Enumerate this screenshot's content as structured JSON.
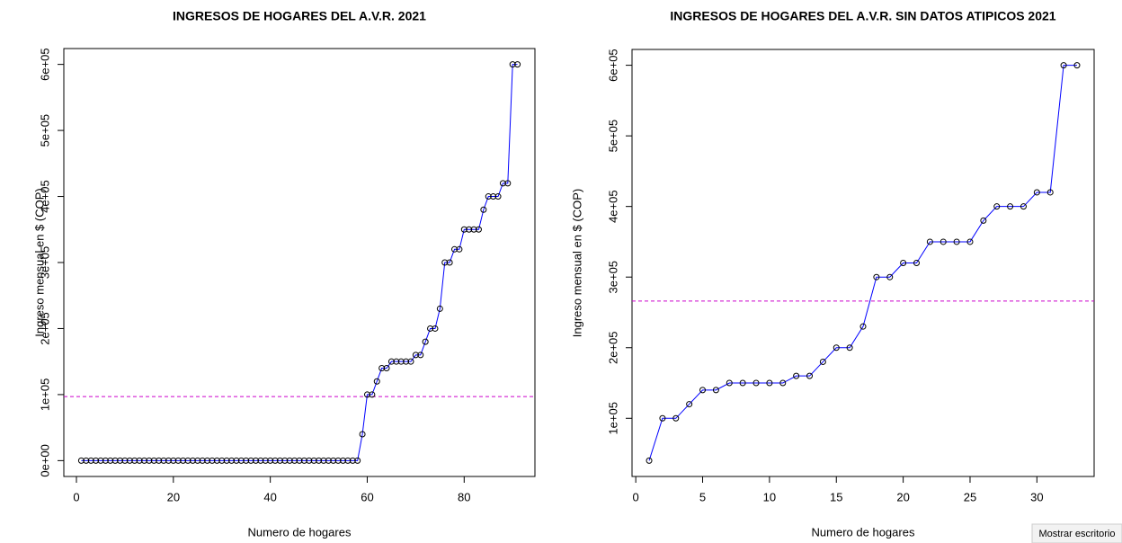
{
  "chart_data": [
    {
      "type": "line",
      "title": "INGRESOS DE HOGARES DEL A.V.R. 2021",
      "x_label": "Numero de hogares",
      "y_label": "Ingreso mensual en $ (COP)",
      "x": [
        1,
        2,
        3,
        4,
        5,
        6,
        7,
        8,
        9,
        10,
        11,
        12,
        13,
        14,
        15,
        16,
        17,
        18,
        19,
        20,
        21,
        22,
        23,
        24,
        25,
        26,
        27,
        28,
        29,
        30,
        31,
        32,
        33,
        34,
        35,
        36,
        37,
        38,
        39,
        40,
        41,
        42,
        43,
        44,
        45,
        46,
        47,
        48,
        49,
        50,
        51,
        52,
        53,
        54,
        55,
        56,
        57,
        58,
        59,
        60,
        61,
        62,
        63,
        64,
        65,
        66,
        67,
        68,
        69,
        70,
        71,
        72,
        73,
        74,
        75,
        76,
        77,
        78,
        79,
        80,
        81,
        82,
        83,
        84,
        85,
        86,
        87,
        88,
        89,
        90,
        91
      ],
      "series": [
        {
          "color": "#0000ff",
          "point_color": "#000000",
          "values": [
            0,
            0,
            0,
            0,
            0,
            0,
            0,
            0,
            0,
            0,
            0,
            0,
            0,
            0,
            0,
            0,
            0,
            0,
            0,
            0,
            0,
            0,
            0,
            0,
            0,
            0,
            0,
            0,
            0,
            0,
            0,
            0,
            0,
            0,
            0,
            0,
            0,
            0,
            0,
            0,
            0,
            0,
            0,
            0,
            0,
            0,
            0,
            0,
            0,
            0,
            0,
            0,
            0,
            0,
            0,
            0,
            0,
            0,
            40000,
            100000,
            100000,
            120000,
            140000,
            140000,
            150000,
            150000,
            150000,
            150000,
            150000,
            160000,
            160000,
            180000,
            200000,
            200000,
            230000,
            300000,
            300000,
            320000,
            320000,
            350000,
            350000,
            350000,
            350000,
            380000,
            400000,
            400000,
            400000,
            420000,
            420000,
            600000,
            600000
          ]
        }
      ],
      "hline": {
        "value": 97000,
        "color": "#cc00cc"
      },
      "xlim": [
        -2.6,
        94.6
      ],
      "xticks": [
        0,
        20,
        40,
        60,
        80
      ],
      "ylim": [
        -24000,
        624000
      ],
      "yticks": [
        {
          "value": 0,
          "label": "0e+00"
        },
        {
          "value": 100000,
          "label": "1e+05"
        },
        {
          "value": 200000,
          "label": "2e+05"
        },
        {
          "value": 300000,
          "label": "3e+05"
        },
        {
          "value": 400000,
          "label": "4e+05"
        },
        {
          "value": 500000,
          "label": "5e+05"
        },
        {
          "value": 600000,
          "label": "6e+05"
        }
      ]
    },
    {
      "type": "line",
      "title": "INGRESOS DE HOGARES DEL A.V.R. SIN DATOS ATIPICOS 2021",
      "x_label": "Numero de hogares",
      "y_label": "Ingreso mensual en $ (COP)",
      "x": [
        1,
        2,
        3,
        4,
        5,
        6,
        7,
        8,
        9,
        10,
        11,
        12,
        13,
        14,
        15,
        16,
        17,
        18,
        19,
        20,
        21,
        22,
        23,
        24,
        25,
        26,
        27,
        28,
        29,
        30,
        31,
        32,
        33
      ],
      "series": [
        {
          "color": "#0000ff",
          "point_color": "#000000",
          "values": [
            40000,
            100000,
            100000,
            120000,
            140000,
            140000,
            150000,
            150000,
            150000,
            150000,
            150000,
            160000,
            160000,
            180000,
            200000,
            200000,
            230000,
            300000,
            300000,
            320000,
            320000,
            350000,
            350000,
            350000,
            350000,
            380000,
            400000,
            400000,
            400000,
            420000,
            420000,
            600000,
            600000
          ]
        }
      ],
      "hline": {
        "value": 266000,
        "color": "#cc00cc"
      },
      "xlim": [
        -0.28,
        34.28
      ],
      "xticks": [
        0,
        5,
        10,
        15,
        20,
        25,
        30
      ],
      "ylim": [
        17600,
        622400
      ],
      "yticks": [
        {
          "value": 100000,
          "label": "1e+05"
        },
        {
          "value": 200000,
          "label": "2e+05"
        },
        {
          "value": 300000,
          "label": "3e+05"
        },
        {
          "value": 400000,
          "label": "4e+05"
        },
        {
          "value": 500000,
          "label": "5e+05"
        },
        {
          "value": 600000,
          "label": "6e+05"
        }
      ]
    }
  ],
  "tooltip": "Mostrar escritorio"
}
